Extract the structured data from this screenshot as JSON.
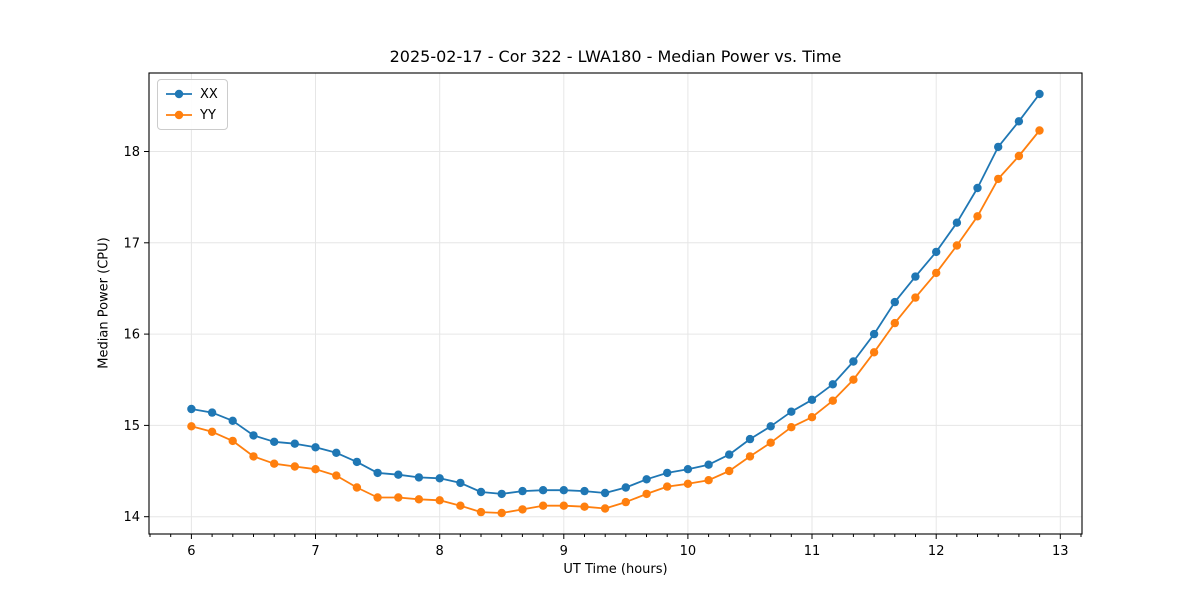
{
  "chart_data": {
    "type": "line",
    "title": "2025-02-17 - Cor 322 - LWA180 - Median Power vs. Time",
    "xlabel": "UT Time (hours)",
    "ylabel": "Median Power (CPU)",
    "x": [
      6.0,
      6.167,
      6.333,
      6.5,
      6.667,
      6.833,
      7.0,
      7.167,
      7.333,
      7.5,
      7.667,
      7.833,
      8.0,
      8.167,
      8.333,
      8.5,
      8.667,
      8.833,
      9.0,
      9.167,
      9.333,
      9.5,
      9.667,
      9.833,
      10.0,
      10.167,
      10.333,
      10.5,
      10.667,
      10.833,
      11.0,
      11.167,
      11.333,
      11.5,
      11.667,
      11.833,
      12.0,
      12.167,
      12.333,
      12.5,
      12.667,
      12.833
    ],
    "series": [
      {
        "name": "XX",
        "color": "#1f77b4",
        "values": [
          15.18,
          15.14,
          15.05,
          14.89,
          14.82,
          14.8,
          14.76,
          14.7,
          14.6,
          14.48,
          14.46,
          14.43,
          14.42,
          14.37,
          14.27,
          14.25,
          14.28,
          14.29,
          14.29,
          14.28,
          14.26,
          14.32,
          14.41,
          14.48,
          14.52,
          14.57,
          14.68,
          14.85,
          14.99,
          15.15,
          15.28,
          15.45,
          15.7,
          16.0,
          16.35,
          16.63,
          16.9,
          17.22,
          17.6,
          18.05,
          18.33,
          18.63
        ]
      },
      {
        "name": "YY",
        "color": "#ff7f0e",
        "values": [
          14.99,
          14.93,
          14.83,
          14.66,
          14.58,
          14.55,
          14.52,
          14.45,
          14.32,
          14.21,
          14.21,
          14.19,
          14.18,
          14.12,
          14.05,
          14.04,
          14.08,
          14.12,
          14.12,
          14.11,
          14.09,
          14.16,
          14.25,
          14.33,
          14.36,
          14.4,
          14.5,
          14.66,
          14.81,
          14.98,
          15.09,
          15.27,
          15.5,
          15.8,
          16.12,
          16.4,
          16.67,
          16.97,
          17.29,
          17.7,
          17.95,
          18.23
        ]
      }
    ],
    "xticks": [
      6,
      7,
      8,
      9,
      10,
      11,
      12,
      13
    ],
    "yticks": [
      14,
      15,
      16,
      17,
      18
    ],
    "xlim": [
      5.6583,
      13.175
    ],
    "ylim": [
      13.8105,
      18.8595
    ],
    "x_minor_step": 0.1666667,
    "grid": true,
    "grid_color": "#e6e6e6",
    "spine_color": "#000000",
    "legend_position": "upper left"
  }
}
